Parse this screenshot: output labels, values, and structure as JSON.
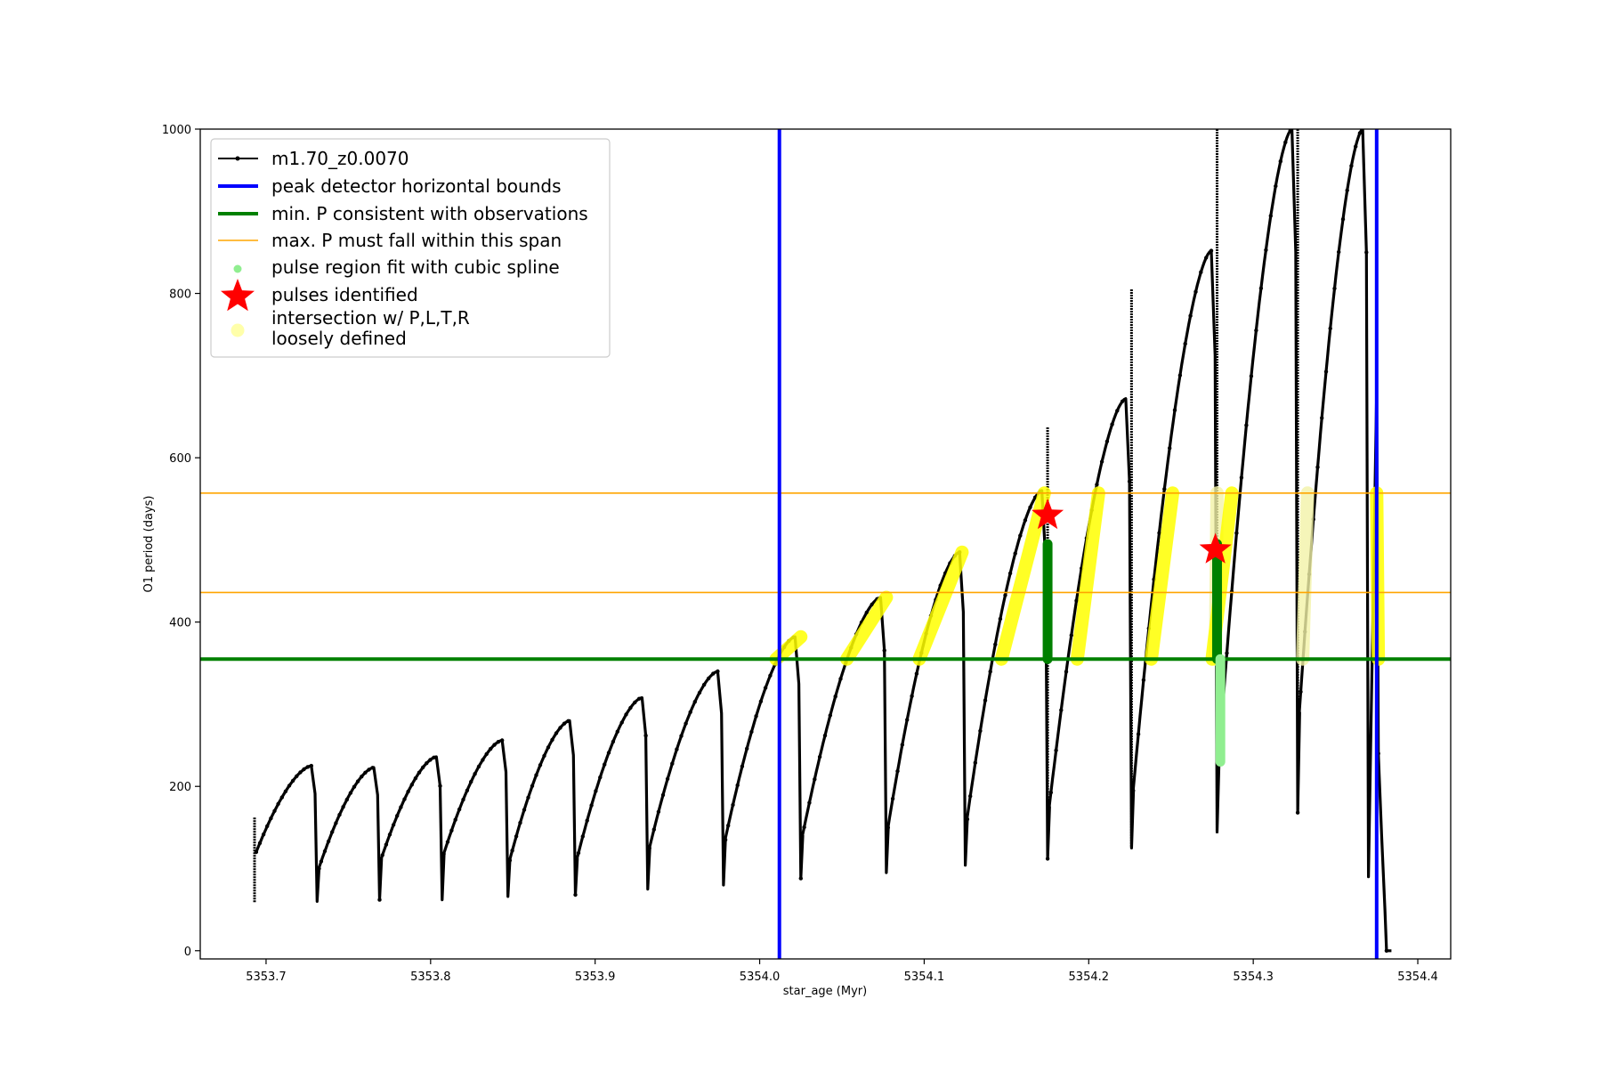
{
  "chart_data": {
    "type": "line",
    "title": "",
    "xlabel": "star_age (Myr)",
    "ylabel": "O1 period (days)",
    "xlim": [
      5353.66,
      5354.42
    ],
    "ylim": [
      -10,
      1000
    ],
    "x_ticks": [
      5353.7,
      5353.8,
      5353.9,
      5354.0,
      5354.1,
      5354.2,
      5354.3,
      5354.4
    ],
    "x_tick_labels": [
      "5353.7",
      "5353.8",
      "5353.9",
      "5354.0",
      "5354.1",
      "5354.2",
      "5354.3",
      "5354.4"
    ],
    "y_ticks": [
      0,
      200,
      400,
      600,
      800,
      1000
    ],
    "y_tick_labels": [
      "0",
      "200",
      "400",
      "600",
      "800",
      "1000"
    ],
    "grid": false,
    "legend_position": "top-left",
    "legend": [
      {
        "label": "m1.70_z0.0070",
        "style": "line-dots",
        "color": "#000000"
      },
      {
        "label": "peak detector horizontal bounds",
        "style": "line",
        "color": "#0000ff"
      },
      {
        "label": "min. P consistent with observations",
        "style": "line",
        "color": "#008000"
      },
      {
        "label": "max. P must fall within this span",
        "style": "thin-line",
        "color": "#ffa500"
      },
      {
        "label": "pulse region fit with cubic spline",
        "style": "dot",
        "color": "#90ee90"
      },
      {
        "label": "pulses identified",
        "style": "star",
        "color": "#ff0000"
      },
      {
        "label": "intersection w/ P,L,T,R\nloosely defined",
        "style": "big-dot",
        "color": "#ffffaa"
      }
    ],
    "series": [
      {
        "name": "m1.70_z0.0070",
        "color": "#000000",
        "pulses": [
          {
            "x0": 5353.693,
            "x1": 5353.731,
            "ystart": 120,
            "ypeak": 225,
            "ymin": 60
          },
          {
            "x0": 5353.731,
            "x1": 5353.769,
            "ystart": 100,
            "ypeak": 223,
            "ymin": 62
          },
          {
            "x0": 5353.769,
            "x1": 5353.807,
            "ystart": 112,
            "ypeak": 236,
            "ymin": 62
          },
          {
            "x0": 5353.807,
            "x1": 5353.847,
            "ystart": 118,
            "ypeak": 256,
            "ymin": 66
          },
          {
            "x0": 5353.847,
            "x1": 5353.888,
            "ystart": 110,
            "ypeak": 280,
            "ymin": 68
          },
          {
            "x0": 5353.888,
            "x1": 5353.932,
            "ystart": 112,
            "ypeak": 308,
            "ymin": 75
          },
          {
            "x0": 5353.932,
            "x1": 5353.978,
            "ystart": 125,
            "ypeak": 340,
            "ymin": 80
          },
          {
            "x0": 5353.978,
            "x1": 5354.025,
            "ystart": 135,
            "ypeak": 382,
            "ymin": 88
          },
          {
            "x0": 5354.025,
            "x1": 5354.077,
            "ystart": 140,
            "ypeak": 430,
            "ymin": 95
          },
          {
            "x0": 5354.077,
            "x1": 5354.125,
            "ystart": 150,
            "ypeak": 485,
            "ymin": 104
          },
          {
            "x0": 5354.125,
            "x1": 5354.175,
            "ystart": 160,
            "ypeak": 560,
            "ymin": 112
          },
          {
            "x0": 5354.175,
            "x1": 5354.226,
            "ystart": 175,
            "ypeak": 672,
            "ymin": 125
          },
          {
            "x0": 5354.226,
            "x1": 5354.278,
            "ystart": 195,
            "ypeak": 852,
            "ymin": 145
          },
          {
            "x0": 5354.278,
            "x1": 5354.327,
            "ystart": 230,
            "ypeak": 1000,
            "ymin": 168
          },
          {
            "x0": 5354.327,
            "x1": 5354.37,
            "ystart": 290,
            "ypeak": 1000,
            "ymin": 90
          }
        ],
        "spikes": [
          {
            "x": 5353.693,
            "top": 162,
            "bottom": 58
          },
          {
            "x": 5354.175,
            "top": 637,
            "bottom": 112
          },
          {
            "x": 5354.226,
            "top": 805,
            "bottom": 125
          },
          {
            "x": 5354.278,
            "top": 1000,
            "bottom": 143
          },
          {
            "x": 5354.327,
            "top": 1000,
            "bottom": 168
          }
        ],
        "tail": [
          {
            "x": 5354.375,
            "y": 680
          },
          {
            "x": 5354.376,
            "y": 240
          },
          {
            "x": 5354.378,
            "y": 140
          },
          {
            "x": 5354.38,
            "y": 50
          },
          {
            "x": 5354.381,
            "y": 0
          },
          {
            "x": 5354.384,
            "y": 0
          }
        ]
      }
    ],
    "vertical_lines": [
      {
        "name": "peak detector horizontal bounds",
        "x": 5354.012,
        "color": "#0000ff"
      },
      {
        "name": "peak detector horizontal bounds",
        "x": 5354.375,
        "color": "#0000ff"
      }
    ],
    "horizontal_lines": [
      {
        "name": "min. P consistent with observations",
        "y": 355,
        "color": "#008000"
      },
      {
        "name": "max. P must fall within this span",
        "y": 436,
        "color": "#ffa500"
      },
      {
        "name": "max. P must fall within this span",
        "y": 557,
        "color": "#ffa500"
      }
    ],
    "loosely_defined_segments": [
      {
        "x0": 5354.01,
        "x1": 5354.025,
        "y0": 355,
        "y1": 382,
        "faded": false
      },
      {
        "x0": 5354.053,
        "x1": 5354.077,
        "y0": 355,
        "y1": 430,
        "faded": false
      },
      {
        "x0": 5354.097,
        "x1": 5354.123,
        "y0": 355,
        "y1": 485,
        "faded": false
      },
      {
        "x0": 5354.147,
        "x1": 5354.173,
        "y0": 355,
        "y1": 557,
        "faded": false
      },
      {
        "x0": 5354.193,
        "x1": 5354.206,
        "y0": 355,
        "y1": 557,
        "faded": false
      },
      {
        "x0": 5354.238,
        "x1": 5354.251,
        "y0": 355,
        "y1": 557,
        "faded": false
      },
      {
        "x0": 5354.277,
        "x1": 5354.278,
        "y0": 355,
        "y1": 557,
        "faded": true
      },
      {
        "x0": 5354.275,
        "x1": 5354.287,
        "y0": 355,
        "y1": 557,
        "faded": false
      },
      {
        "x0": 5354.33,
        "x1": 5354.333,
        "y0": 355,
        "y1": 557,
        "faded": true
      },
      {
        "x0": 5354.375,
        "x1": 5354.376,
        "y0": 557,
        "y1": 355,
        "faded": false
      }
    ],
    "spline_regions": [
      {
        "x": 5354.175,
        "y0": 355,
        "y1": 495,
        "color": "#008000"
      },
      {
        "x": 5354.278,
        "y0": 355,
        "y1": 495,
        "color": "#008000"
      },
      {
        "x": 5354.28,
        "y0": 230,
        "y1": 355,
        "color": "#90ee90"
      }
    ],
    "pulses_identified": [
      {
        "x": 5354.175,
        "y": 530
      },
      {
        "x": 5354.277,
        "y": 488
      }
    ]
  }
}
